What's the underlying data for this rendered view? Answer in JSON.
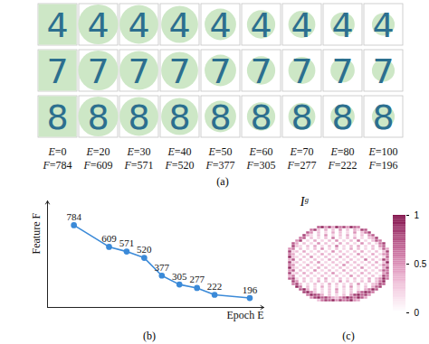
{
  "chart_data": [
    {
      "type": "image_grid",
      "caption": "(a)",
      "digits": [
        "4",
        "7",
        "8"
      ],
      "epoch_prefix": "E=",
      "feature_prefix": "F=",
      "epochs": [
        0,
        20,
        30,
        40,
        50,
        60,
        70,
        80,
        100
      ],
      "features": [
        784,
        609,
        571,
        520,
        377,
        305,
        277,
        222,
        196
      ],
      "color": "#cde7c6"
    },
    {
      "type": "line",
      "caption": "(b)",
      "y_label": "Feature F",
      "x_label": "Epoch E",
      "x": [
        0,
        20,
        30,
        40,
        50,
        60,
        70,
        80,
        100
      ],
      "values": [
        784,
        609,
        571,
        520,
        377,
        305,
        277,
        222,
        196
      ],
      "xlim": [
        -15,
        108
      ],
      "ylim": [
        120,
        980
      ],
      "tick_labels": false,
      "data_labels": true,
      "color": "#3b8ad8",
      "marker": "circle"
    },
    {
      "type": "heatmap",
      "caption": "(c)",
      "title": "Iᵍ",
      "colorbar": {
        "range": [
          0,
          1
        ],
        "ticks": [
          0,
          0.5,
          1
        ]
      },
      "cells": [
        [
          0,
          0,
          0,
          0,
          0,
          0,
          0,
          0,
          0.7,
          0.9,
          0.5,
          0.8,
          0.4,
          0.9,
          0.6,
          0.8,
          0.5,
          0.9,
          0.7,
          0.6,
          0,
          0,
          0,
          0,
          0,
          0,
          0,
          0
        ],
        [
          0,
          0,
          0,
          0,
          0,
          0,
          0.6,
          0.8,
          0.3,
          0,
          0.4,
          0,
          0.3,
          0,
          0.5,
          0,
          0.3,
          0,
          0.4,
          0.2,
          0.8,
          0.7,
          0,
          0,
          0,
          0,
          0,
          0
        ],
        [
          0,
          0,
          0,
          0,
          0,
          0.7,
          0.5,
          0,
          0.3,
          0,
          0.2,
          0,
          0.4,
          0,
          0.3,
          0,
          0.2,
          0,
          0.5,
          0,
          0.3,
          0.6,
          0.8,
          0,
          0,
          0,
          0,
          0
        ],
        [
          0,
          0,
          0,
          0,
          0.8,
          0.4,
          0.2,
          0,
          0.3,
          0,
          0.5,
          0,
          0.2,
          0,
          0.3,
          0,
          0.4,
          0,
          0.2,
          0,
          0.3,
          0,
          0.5,
          0.7,
          0,
          0,
          0,
          0
        ],
        [
          0,
          0,
          0,
          0.6,
          0.7,
          0,
          0.3,
          0,
          0.2,
          0,
          0.3,
          0,
          0.6,
          0,
          0.2,
          0,
          0.3,
          0,
          0.4,
          0,
          0.2,
          0,
          0.3,
          0.4,
          0.8,
          0,
          0,
          0
        ],
        [
          0,
          0,
          0.5,
          0.8,
          0,
          0.2,
          0,
          0.4,
          0,
          0.2,
          0,
          0.3,
          0,
          0.5,
          0,
          0.2,
          0,
          0.3,
          0,
          0.6,
          0,
          0.2,
          0,
          0.3,
          0.7,
          0.6,
          0,
          0
        ],
        [
          0,
          0.7,
          0.4,
          0,
          0.3,
          0,
          0.2,
          0,
          0.5,
          0,
          0.3,
          0,
          0.2,
          0,
          0.4,
          0,
          0.3,
          0,
          0.2,
          0,
          0.5,
          0,
          0.3,
          0,
          0.2,
          0.6,
          0.8,
          0
        ],
        [
          0,
          0.8,
          0.3,
          0.2,
          0,
          0.3,
          0,
          0.4,
          0,
          0.2,
          0,
          0.3,
          0,
          0.6,
          0,
          0.2,
          0,
          0.3,
          0,
          0.4,
          0,
          0.2,
          0,
          0.3,
          0,
          0.5,
          0.7,
          0
        ],
        [
          0.5,
          0.6,
          0,
          0.3,
          0,
          0.2,
          0,
          0.3,
          0,
          0.5,
          0,
          0.2,
          0,
          0.3,
          0,
          0.2,
          0,
          0.4,
          0,
          0.3,
          0,
          0.2,
          0,
          0.3,
          0,
          0.2,
          0.7,
          0.4
        ],
        [
          0.8,
          0.2,
          0.3,
          0,
          0.4,
          0,
          0.2,
          0,
          0.3,
          0,
          0.2,
          0,
          0.5,
          0,
          0.3,
          0,
          0.2,
          0,
          0.3,
          0,
          0.4,
          0,
          0.2,
          0,
          0.3,
          0,
          0.3,
          0.8
        ],
        [
          0.6,
          0.4,
          0,
          0.2,
          0,
          0.3,
          0,
          0.2,
          0,
          0.4,
          0,
          0.3,
          0,
          0.2,
          0,
          0.3,
          0,
          0.2,
          0,
          0.5,
          0,
          0.2,
          0,
          0.4,
          0,
          0.2,
          0.5,
          0.6
        ],
        [
          0.9,
          0.3,
          0.2,
          0,
          0.3,
          0,
          0.5,
          0,
          0.2,
          0,
          0.3,
          0,
          0.2,
          0,
          0.4,
          0,
          0.3,
          0,
          0.2,
          0,
          0.3,
          0,
          0.2,
          0,
          0.3,
          0,
          0.2,
          0.7
        ],
        [
          0.4,
          0.7,
          0,
          0.3,
          0,
          0.2,
          0,
          0.3,
          0,
          0.2,
          0,
          0.4,
          0,
          0.3,
          0,
          0.2,
          0,
          0.3,
          0,
          0.2,
          0,
          0.6,
          0,
          0.3,
          0,
          0.2,
          0.8,
          0.5
        ],
        [
          0.8,
          0.2,
          0.3,
          0,
          0.2,
          0,
          0.3,
          0,
          0.5,
          0,
          0.2,
          0,
          0.3,
          0,
          0.2,
          0,
          0.4,
          0,
          0.3,
          0,
          0.2,
          0,
          0.3,
          0,
          0.4,
          0,
          0.3,
          0.9
        ],
        [
          0.6,
          0.5,
          0,
          0.2,
          0,
          0.4,
          0,
          0.2,
          0,
          0.3,
          0,
          0.2,
          0,
          0.3,
          0,
          0.5,
          0,
          0.2,
          0,
          0.3,
          0,
          0.2,
          0,
          0.3,
          0,
          0.2,
          0.6,
          0.5
        ],
        [
          0.9,
          0.3,
          0.2,
          0,
          0.3,
          0,
          0.2,
          0,
          0.4,
          0,
          0.3,
          0,
          0.2,
          0,
          0.3,
          0,
          0.2,
          0,
          0.3,
          0,
          0.5,
          0,
          0.2,
          0,
          0.3,
          0,
          0.4,
          0.8
        ],
        [
          0.5,
          0.7,
          0,
          0.3,
          0,
          0.2,
          0,
          0.5,
          0,
          0.2,
          0,
          0.3,
          0,
          0.2,
          0,
          0.4,
          0,
          0.3,
          0,
          0.2,
          0,
          0.3,
          0,
          0.2,
          0,
          0.3,
          0.7,
          0.6
        ],
        [
          0.8,
          0.2,
          0.3,
          0,
          0.4,
          0,
          0.3,
          0,
          0.2,
          0,
          0.3,
          0,
          0.5,
          0,
          0.2,
          0,
          0.3,
          0,
          0.2,
          0,
          0.4,
          0,
          0.3,
          0,
          0.2,
          0,
          0.5,
          0.7
        ],
        [
          0.4,
          0.6,
          0,
          0.2,
          0,
          0.3,
          0,
          0.2,
          0,
          0.3,
          0,
          0.2,
          0,
          0.3,
          0,
          0.2,
          0,
          0.5,
          0,
          0.3,
          0,
          0.2,
          0,
          0.3,
          0,
          0.2,
          0.8,
          0.6
        ],
        [
          0.7,
          0.8,
          0.2,
          0,
          0.3,
          0,
          0.2,
          0,
          0.3,
          0,
          0.4,
          0,
          0.2,
          0,
          0.3,
          0,
          0.2,
          0,
          0.3,
          0,
          0.2,
          0,
          0.4,
          0,
          0.3,
          0.5,
          0.9,
          0.6
        ],
        [
          0,
          0.8,
          0.5,
          0,
          0.3,
          0,
          0.2,
          0,
          0.4,
          0,
          0.3,
          0,
          0.2,
          0,
          0.5,
          0,
          0.3,
          0,
          0.2,
          0,
          0.3,
          0,
          0.4,
          0,
          0.3,
          0.6,
          0.9,
          0
        ],
        [
          0,
          0.6,
          0.8,
          0.3,
          0,
          0.2,
          0,
          0.3,
          0,
          0.2,
          0,
          0.4,
          0,
          0.3,
          0,
          0.2,
          0,
          0.3,
          0,
          0.5,
          0,
          0.2,
          0,
          0.3,
          0.4,
          0.8,
          0.7,
          0
        ],
        [
          0,
          0,
          0.9,
          0.6,
          0,
          0.3,
          0,
          0.2,
          0,
          0.4,
          0,
          0.3,
          0,
          0.2,
          0,
          0.3,
          0,
          0.5,
          0,
          0.2,
          0,
          0.3,
          0,
          0.4,
          0.7,
          0.8,
          0,
          0
        ],
        [
          0,
          0,
          0,
          0.7,
          0.9,
          0.4,
          0,
          0.3,
          0,
          0.2,
          0,
          0.3,
          0,
          0.5,
          0,
          0.2,
          0,
          0.3,
          0,
          0.2,
          0,
          0.4,
          0.6,
          0.9,
          0.7,
          0,
          0,
          0
        ],
        [
          0,
          0,
          0,
          0,
          0.8,
          0.9,
          0.6,
          0.3,
          0,
          0.2,
          0,
          0.3,
          0,
          0.4,
          0,
          0.2,
          0,
          0.3,
          0,
          0.5,
          0.7,
          0.9,
          0.8,
          0.6,
          0,
          0,
          0,
          0
        ],
        [
          0,
          0,
          0,
          0,
          0,
          0.6,
          0.9,
          0.8,
          0.7,
          0.4,
          0,
          0.3,
          0,
          0.2,
          0,
          0.3,
          0,
          0.5,
          0.8,
          0.9,
          0.7,
          0.8,
          0.5,
          0,
          0,
          0,
          0,
          0
        ],
        [
          0,
          0,
          0,
          0,
          0,
          0,
          0.5,
          0.8,
          0.9,
          0.7,
          0.8,
          0.6,
          0.4,
          0.3,
          0.5,
          0.7,
          0.9,
          0.8,
          0.6,
          0.9,
          0.7,
          0.4,
          0,
          0,
          0,
          0,
          0,
          0
        ],
        [
          0,
          0,
          0,
          0,
          0,
          0,
          0,
          0,
          0.3,
          0.6,
          0.8,
          0.7,
          0.9,
          0.5,
          0.8,
          0.6,
          0.7,
          0.9,
          0.5,
          0.4,
          0,
          0,
          0,
          0,
          0,
          0,
          0,
          0
        ]
      ]
    }
  ]
}
